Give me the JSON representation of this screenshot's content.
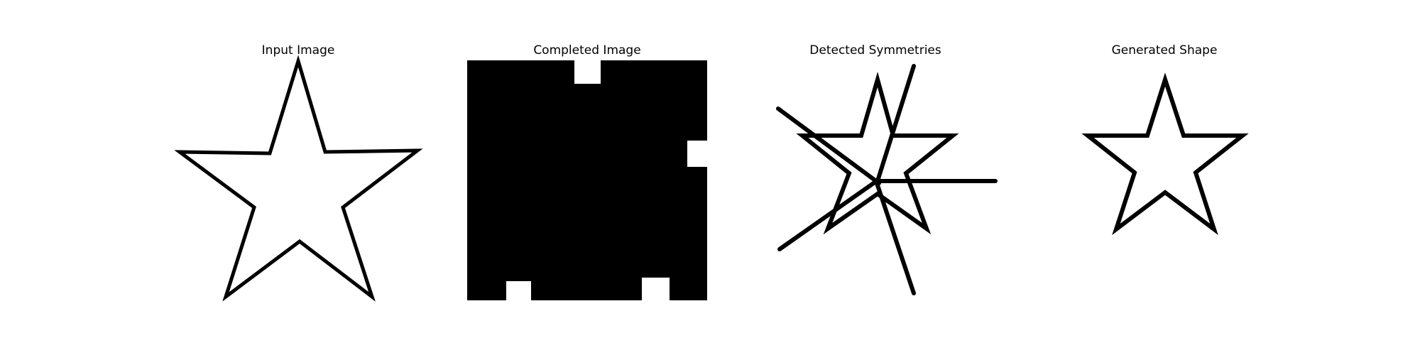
{
  "panels": [
    {
      "title": "Input Image"
    },
    {
      "title": "Completed Image"
    },
    {
      "title": "Detected Symmetries"
    },
    {
      "title": "Generated Shape"
    }
  ],
  "colors": {
    "background": "#ffffff",
    "ink": "#000000"
  }
}
